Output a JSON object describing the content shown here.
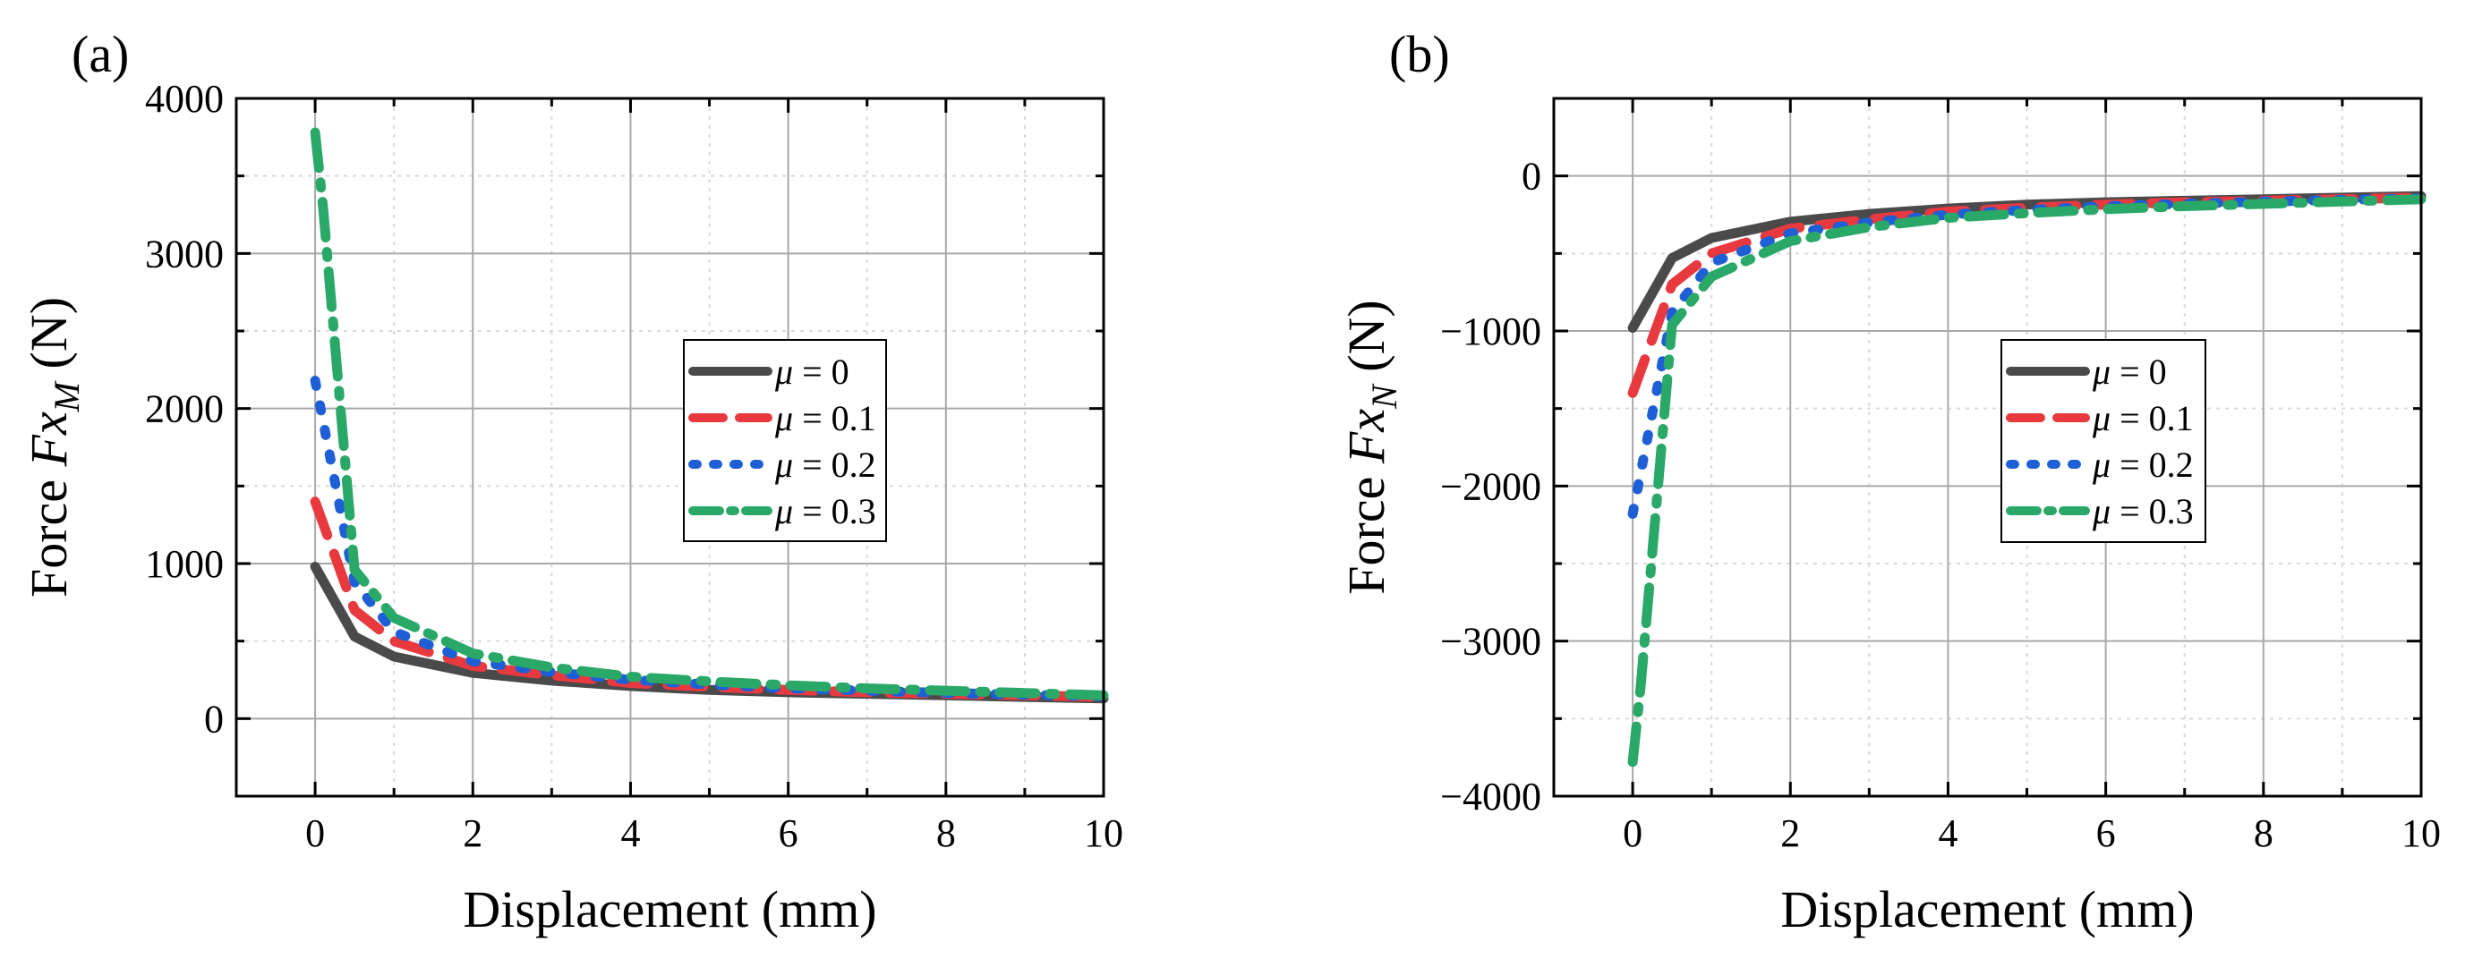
{
  "chart_data": [
    {
      "type": "line",
      "panel_label": "(a)",
      "xlabel": "Displacement (mm)",
      "ylabel_prefix": "Force ",
      "ylabel_var": "Fx",
      "ylabel_sub": "M",
      "ylabel_suffix": " (N)",
      "xlim": [
        -1,
        10
      ],
      "ylim": [
        -500,
        4000
      ],
      "xticks": [
        0,
        2,
        4,
        6,
        8,
        10
      ],
      "yticks": [
        0,
        1000,
        2000,
        3000,
        4000
      ],
      "xtick_labels": [
        "0",
        "2",
        "4",
        "6",
        "8",
        "10"
      ],
      "ytick_labels": [
        "0",
        "1000",
        "2000",
        "3000",
        "4000"
      ],
      "grid": true,
      "legend_position": "center-right",
      "series": [
        {
          "mu_symbol": "μ",
          "value_label": " = 0",
          "color": "#4a4a4a",
          "style": "solid",
          "x": [
            0,
            0.5,
            1,
            2,
            3,
            4,
            5,
            6,
            7,
            8,
            9,
            10
          ],
          "y": [
            980,
            530,
            400,
            295,
            245,
            210,
            185,
            170,
            160,
            150,
            140,
            130
          ]
        },
        {
          "mu_symbol": "μ",
          "value_label": " = 0.1",
          "color": "#e8393f",
          "style": "dash",
          "x": [
            0,
            0.5,
            1,
            2,
            3,
            4,
            5,
            6,
            7,
            8,
            9,
            10
          ],
          "y": [
            1400,
            700,
            500,
            340,
            280,
            230,
            205,
            185,
            170,
            160,
            150,
            140
          ]
        },
        {
          "mu_symbol": "μ",
          "value_label": " = 0.2",
          "color": "#1f5fd6",
          "style": "dot",
          "x": [
            0,
            0.5,
            1,
            2,
            3,
            4,
            5,
            6,
            7,
            8,
            9,
            10
          ],
          "y": [
            2180,
            880,
            560,
            370,
            300,
            250,
            220,
            195,
            180,
            165,
            155,
            145
          ]
        },
        {
          "mu_symbol": "μ",
          "value_label": " = 0.3",
          "color": "#2aa868",
          "style": "dashdot",
          "x": [
            0,
            0.1,
            0.5,
            1,
            2,
            3,
            4,
            5,
            6,
            7,
            8,
            9,
            10
          ],
          "y": [
            3780,
            3300,
            960,
            650,
            420,
            330,
            270,
            240,
            215,
            195,
            180,
            165,
            150
          ]
        }
      ]
    },
    {
      "type": "line",
      "panel_label": "(b)",
      "xlabel": "Displacement (mm)",
      "ylabel_prefix": "Force ",
      "ylabel_var": "Fx",
      "ylabel_sub": "N",
      "ylabel_suffix": " (N)",
      "xlim": [
        -1,
        10
      ],
      "ylim": [
        -4000,
        500
      ],
      "xticks": [
        0,
        2,
        4,
        6,
        8,
        10
      ],
      "yticks": [
        -4000,
        -3000,
        -2000,
        -1000,
        0
      ],
      "xtick_labels": [
        "0",
        "2",
        "4",
        "6",
        "8",
        "10"
      ],
      "ytick_labels": [
        "−4000",
        "−3000",
        "−2000",
        "−1000",
        "0"
      ],
      "grid": true,
      "legend_position": "center-right",
      "series": [
        {
          "mu_symbol": "μ",
          "value_label": " = 0",
          "color": "#4a4a4a",
          "style": "solid",
          "x": [
            0,
            0.5,
            1,
            2,
            3,
            4,
            5,
            6,
            7,
            8,
            9,
            10
          ],
          "y": [
            -980,
            -530,
            -400,
            -295,
            -245,
            -210,
            -185,
            -170,
            -160,
            -150,
            -140,
            -130
          ]
        },
        {
          "mu_symbol": "μ",
          "value_label": " = 0.1",
          "color": "#e8393f",
          "style": "dash",
          "x": [
            0,
            0.5,
            1,
            2,
            3,
            4,
            5,
            6,
            7,
            8,
            9,
            10
          ],
          "y": [
            -1400,
            -700,
            -500,
            -340,
            -280,
            -230,
            -205,
            -185,
            -170,
            -160,
            -150,
            -140
          ]
        },
        {
          "mu_symbol": "μ",
          "value_label": " = 0.2",
          "color": "#1f5fd6",
          "style": "dot",
          "x": [
            0,
            0.5,
            1,
            2,
            3,
            4,
            5,
            6,
            7,
            8,
            9,
            10
          ],
          "y": [
            -2180,
            -880,
            -560,
            -370,
            -300,
            -250,
            -220,
            -195,
            -180,
            -165,
            -155,
            -145
          ]
        },
        {
          "mu_symbol": "μ",
          "value_label": " = 0.3",
          "color": "#2aa868",
          "style": "dashdot",
          "x": [
            0,
            0.1,
            0.5,
            1,
            2,
            3,
            4,
            5,
            6,
            7,
            8,
            9,
            10
          ],
          "y": [
            -3780,
            -3300,
            -960,
            -650,
            -420,
            -330,
            -270,
            -240,
            -215,
            -195,
            -180,
            -165,
            -150
          ]
        }
      ]
    }
  ]
}
